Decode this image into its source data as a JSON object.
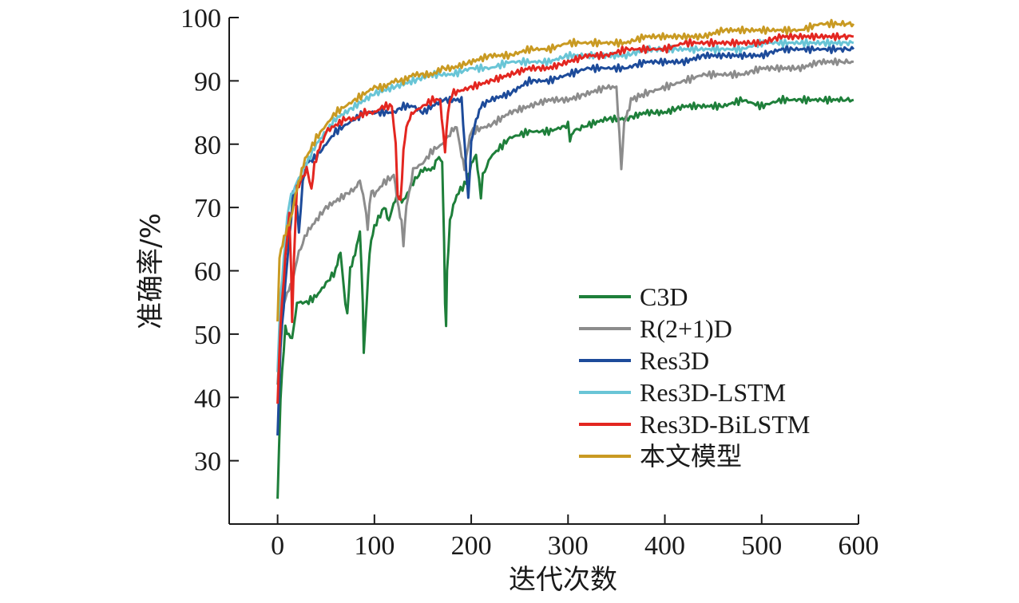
{
  "chart_data": {
    "type": "line",
    "xlabel": "迭代次数",
    "ylabel": "准确率/%",
    "xlim": [
      -50,
      600
    ],
    "ylim": [
      20,
      100
    ],
    "xticks": [
      0,
      100,
      200,
      300,
      400,
      500,
      600
    ],
    "yticks": [
      30,
      40,
      50,
      60,
      70,
      80,
      90,
      100
    ],
    "grid": false,
    "legend_position": "center-right",
    "series": [
      {
        "name": "C3D",
        "color": "#1e7f3a",
        "points": [
          [
            0,
            24
          ],
          [
            3,
            40
          ],
          [
            8,
            51
          ],
          [
            15,
            49
          ],
          [
            20,
            55
          ],
          [
            30,
            55
          ],
          [
            40,
            56
          ],
          [
            50,
            58
          ],
          [
            60,
            60
          ],
          [
            65,
            63
          ],
          [
            70,
            55
          ],
          [
            72,
            53
          ],
          [
            75,
            60
          ],
          [
            80,
            63
          ],
          [
            85,
            66
          ],
          [
            88,
            55
          ],
          [
            89,
            47
          ],
          [
            92,
            55
          ],
          [
            95,
            63
          ],
          [
            100,
            67
          ],
          [
            110,
            70
          ],
          [
            115,
            68
          ],
          [
            118,
            70
          ],
          [
            125,
            72
          ],
          [
            130,
            71
          ],
          [
            140,
            74
          ],
          [
            150,
            76
          ],
          [
            160,
            76
          ],
          [
            165,
            78
          ],
          [
            170,
            77
          ],
          [
            172,
            65
          ],
          [
            173,
            55
          ],
          [
            174,
            51
          ],
          [
            175,
            60
          ],
          [
            178,
            68
          ],
          [
            185,
            72
          ],
          [
            195,
            74
          ],
          [
            200,
            77
          ],
          [
            205,
            78
          ],
          [
            208,
            74
          ],
          [
            210,
            72
          ],
          [
            212,
            75
          ],
          [
            220,
            78
          ],
          [
            240,
            81
          ],
          [
            260,
            82
          ],
          [
            280,
            82
          ],
          [
            300,
            83
          ],
          [
            302,
            81
          ],
          [
            305,
            82
          ],
          [
            320,
            83
          ],
          [
            340,
            84
          ],
          [
            360,
            84
          ],
          [
            380,
            85
          ],
          [
            400,
            85
          ],
          [
            420,
            86
          ],
          [
            440,
            86
          ],
          [
            460,
            86
          ],
          [
            480,
            87
          ],
          [
            500,
            86
          ],
          [
            520,
            87
          ],
          [
            540,
            87
          ],
          [
            560,
            87
          ],
          [
            580,
            87
          ],
          [
            595,
            87
          ]
        ]
      },
      {
        "name": "R(2+1)D",
        "color": "#8c8c8c",
        "points": [
          [
            0,
            42
          ],
          [
            4,
            52
          ],
          [
            8,
            56
          ],
          [
            15,
            58
          ],
          [
            20,
            62
          ],
          [
            30,
            66
          ],
          [
            40,
            68
          ],
          [
            50,
            70
          ],
          [
            60,
            71
          ],
          [
            70,
            72
          ],
          [
            80,
            73
          ],
          [
            85,
            74
          ],
          [
            90,
            71
          ],
          [
            93,
            67
          ],
          [
            97,
            73
          ],
          [
            100,
            72
          ],
          [
            110,
            74
          ],
          [
            120,
            75
          ],
          [
            125,
            70
          ],
          [
            128,
            68
          ],
          [
            130,
            64
          ],
          [
            133,
            70
          ],
          [
            140,
            76
          ],
          [
            150,
            77
          ],
          [
            160,
            79
          ],
          [
            170,
            80
          ],
          [
            180,
            82
          ],
          [
            185,
            83
          ],
          [
            190,
            78
          ],
          [
            193,
            76
          ],
          [
            197,
            80
          ],
          [
            200,
            82
          ],
          [
            220,
            83
          ],
          [
            240,
            85
          ],
          [
            260,
            86
          ],
          [
            280,
            87
          ],
          [
            300,
            87
          ],
          [
            320,
            88
          ],
          [
            340,
            89
          ],
          [
            350,
            89
          ],
          [
            353,
            82
          ],
          [
            355,
            76
          ],
          [
            358,
            83
          ],
          [
            365,
            87
          ],
          [
            380,
            88
          ],
          [
            400,
            89
          ],
          [
            420,
            90
          ],
          [
            440,
            91
          ],
          [
            460,
            91
          ],
          [
            480,
            91
          ],
          [
            500,
            92
          ],
          [
            520,
            92
          ],
          [
            540,
            92
          ],
          [
            560,
            93
          ],
          [
            580,
            93
          ],
          [
            595,
            93
          ]
        ]
      },
      {
        "name": "Res3D",
        "color": "#1d4b9a",
        "points": [
          [
            0,
            34
          ],
          [
            3,
            48
          ],
          [
            8,
            58
          ],
          [
            12,
            65
          ],
          [
            16,
            72
          ],
          [
            20,
            70
          ],
          [
            22,
            66
          ],
          [
            26,
            74
          ],
          [
            30,
            77
          ],
          [
            40,
            78
          ],
          [
            50,
            80
          ],
          [
            60,
            82
          ],
          [
            70,
            83
          ],
          [
            80,
            84
          ],
          [
            90,
            85
          ],
          [
            100,
            85
          ],
          [
            110,
            85
          ],
          [
            120,
            85
          ],
          [
            130,
            86
          ],
          [
            140,
            86
          ],
          [
            150,
            85
          ],
          [
            160,
            86
          ],
          [
            170,
            87
          ],
          [
            180,
            87
          ],
          [
            190,
            87
          ],
          [
            195,
            76
          ],
          [
            197,
            71
          ],
          [
            200,
            80
          ],
          [
            205,
            84
          ],
          [
            210,
            86
          ],
          [
            220,
            87
          ],
          [
            240,
            88
          ],
          [
            260,
            90
          ],
          [
            280,
            90
          ],
          [
            300,
            91
          ],
          [
            320,
            92
          ],
          [
            340,
            92
          ],
          [
            360,
            92
          ],
          [
            380,
            93
          ],
          [
            400,
            93
          ],
          [
            420,
            93
          ],
          [
            440,
            94
          ],
          [
            460,
            94
          ],
          [
            480,
            94
          ],
          [
            500,
            94
          ],
          [
            520,
            95
          ],
          [
            540,
            95
          ],
          [
            560,
            95
          ],
          [
            580,
            95
          ],
          [
            595,
            95
          ]
        ]
      },
      {
        "name": "Res3D-LSTM",
        "color": "#69c5d6",
        "points": [
          [
            0,
            44
          ],
          [
            3,
            56
          ],
          [
            8,
            65
          ],
          [
            12,
            71
          ],
          [
            20,
            74
          ],
          [
            30,
            77
          ],
          [
            40,
            80
          ],
          [
            50,
            82
          ],
          [
            60,
            84
          ],
          [
            70,
            85
          ],
          [
            80,
            86
          ],
          [
            90,
            87
          ],
          [
            100,
            88
          ],
          [
            120,
            89
          ],
          [
            140,
            90
          ],
          [
            160,
            91
          ],
          [
            180,
            91
          ],
          [
            200,
            92
          ],
          [
            220,
            92
          ],
          [
            240,
            93
          ],
          [
            260,
            93
          ],
          [
            280,
            93
          ],
          [
            300,
            94
          ],
          [
            320,
            94
          ],
          [
            340,
            94
          ],
          [
            360,
            94
          ],
          [
            380,
            95
          ],
          [
            400,
            95
          ],
          [
            420,
            95
          ],
          [
            440,
            95
          ],
          [
            460,
            95
          ],
          [
            480,
            95
          ],
          [
            500,
            96
          ],
          [
            520,
            96
          ],
          [
            540,
            96
          ],
          [
            560,
            96
          ],
          [
            580,
            96
          ],
          [
            595,
            96
          ]
        ]
      },
      {
        "name": "Res3D-BiLSTM",
        "color": "#e32620",
        "points": [
          [
            0,
            39
          ],
          [
            3,
            52
          ],
          [
            8,
            62
          ],
          [
            12,
            69
          ],
          [
            14,
            60
          ],
          [
            15,
            52
          ],
          [
            17,
            62
          ],
          [
            20,
            73
          ],
          [
            30,
            76
          ],
          [
            33,
            74
          ],
          [
            35,
            73
          ],
          [
            38,
            77
          ],
          [
            45,
            80
          ],
          [
            50,
            82
          ],
          [
            60,
            83
          ],
          [
            70,
            84
          ],
          [
            80,
            84
          ],
          [
            90,
            85
          ],
          [
            100,
            85
          ],
          [
            110,
            86
          ],
          [
            118,
            86
          ],
          [
            122,
            80
          ],
          [
            124,
            72
          ],
          [
            127,
            71
          ],
          [
            130,
            79
          ],
          [
            133,
            83
          ],
          [
            140,
            85
          ],
          [
            150,
            86
          ],
          [
            160,
            87
          ],
          [
            168,
            87
          ],
          [
            171,
            82
          ],
          [
            173,
            79
          ],
          [
            176,
            85
          ],
          [
            180,
            88
          ],
          [
            200,
            89
          ],
          [
            220,
            90
          ],
          [
            240,
            91
          ],
          [
            260,
            92
          ],
          [
            280,
            92
          ],
          [
            300,
            93
          ],
          [
            320,
            94
          ],
          [
            340,
            94
          ],
          [
            360,
            95
          ],
          [
            380,
            95
          ],
          [
            400,
            95
          ],
          [
            420,
            96
          ],
          [
            440,
            96
          ],
          [
            460,
            96
          ],
          [
            480,
            96
          ],
          [
            500,
            96
          ],
          [
            520,
            97
          ],
          [
            540,
            97
          ],
          [
            560,
            97
          ],
          [
            580,
            97
          ],
          [
            595,
            97
          ]
        ]
      },
      {
        "name": "本文模型",
        "color": "#c99a22",
        "points": [
          [
            0,
            52
          ],
          [
            2,
            62
          ],
          [
            5,
            64
          ],
          [
            10,
            67
          ],
          [
            15,
            69
          ],
          [
            20,
            73
          ],
          [
            25,
            76
          ],
          [
            30,
            78
          ],
          [
            40,
            81
          ],
          [
            50,
            83
          ],
          [
            60,
            85
          ],
          [
            70,
            86
          ],
          [
            80,
            87
          ],
          [
            90,
            88
          ],
          [
            100,
            89
          ],
          [
            110,
            89
          ],
          [
            120,
            90
          ],
          [
            130,
            90
          ],
          [
            140,
            91
          ],
          [
            150,
            91
          ],
          [
            160,
            91
          ],
          [
            170,
            92
          ],
          [
            180,
            92
          ],
          [
            200,
            93
          ],
          [
            220,
            94
          ],
          [
            240,
            94
          ],
          [
            260,
            95
          ],
          [
            280,
            95
          ],
          [
            300,
            96
          ],
          [
            320,
            96
          ],
          [
            340,
            96
          ],
          [
            360,
            96
          ],
          [
            380,
            97
          ],
          [
            400,
            97
          ],
          [
            420,
            97
          ],
          [
            440,
            97
          ],
          [
            460,
            98
          ],
          [
            480,
            98
          ],
          [
            500,
            98
          ],
          [
            520,
            98
          ],
          [
            540,
            98
          ],
          [
            560,
            99
          ],
          [
            580,
            99
          ],
          [
            595,
            99
          ]
        ]
      }
    ]
  }
}
